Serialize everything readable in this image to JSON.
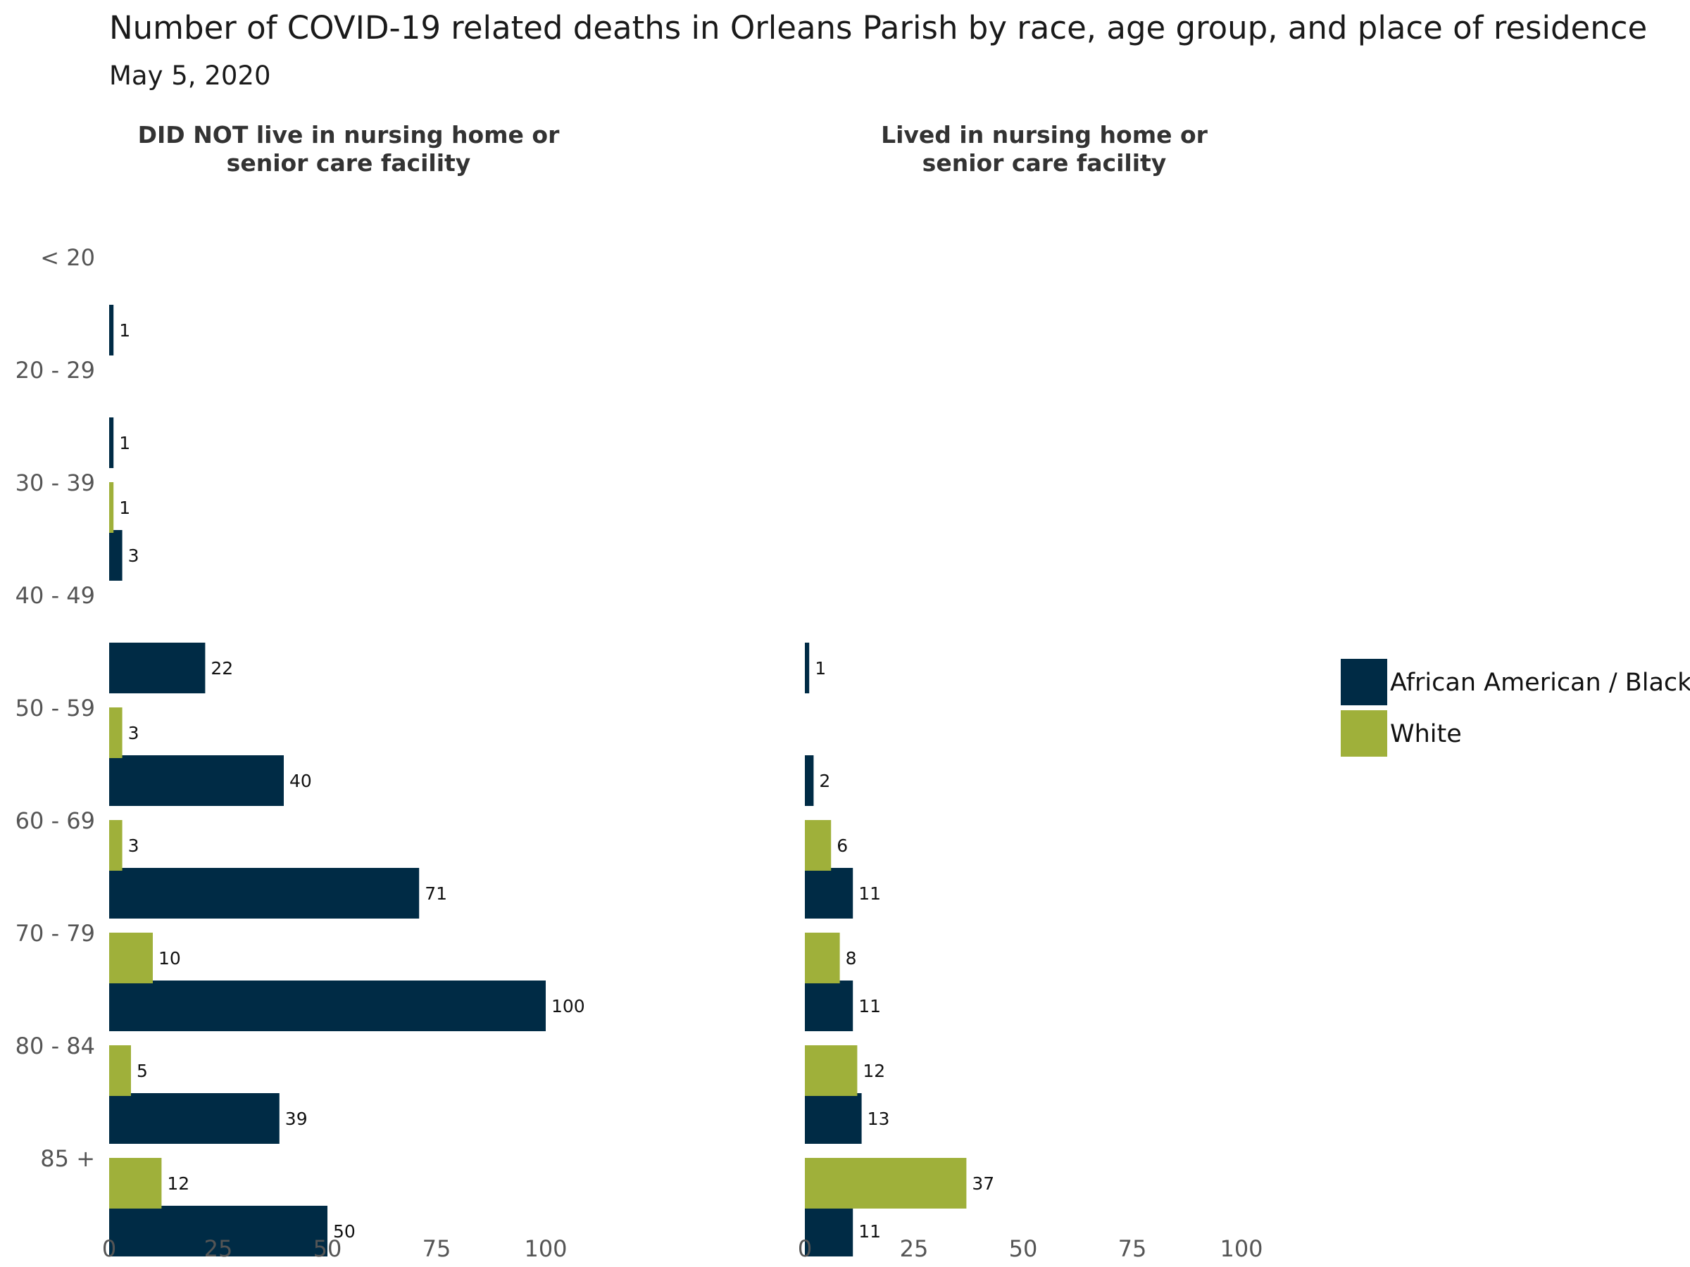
{
  "chart_data": {
    "type": "bar",
    "orientation": "horizontal",
    "title": "Number of COVID-19 related deaths in Orleans Parish by race, age group, and place of residence",
    "subtitle": "May 5, 2020",
    "categories": [
      "< 20",
      "20 - 29",
      "30 - 39",
      "40 - 49",
      "50 - 59",
      "60 - 69",
      "70 - 79",
      "80 - 84",
      "85 +"
    ],
    "xlim": [
      0,
      100
    ],
    "x_ticks": [
      "0",
      "25",
      "50",
      "75",
      "100"
    ],
    "grid": false,
    "legend_position": "right",
    "legend": [
      {
        "name": "African American / Black",
        "color": "#002b45"
      },
      {
        "name": "White",
        "color": "#9fb03a"
      }
    ],
    "panels": [
      {
        "title_lines": [
          "DID NOT live in nursing home or",
          "senior care facility"
        ],
        "series": [
          {
            "name": "African American / Black",
            "color": "#002b45",
            "values": [
              1,
              1,
              3,
              22,
              40,
              71,
              100,
              39,
              50
            ]
          },
          {
            "name": "White",
            "color": "#9fb03a",
            "values": [
              null,
              null,
              1,
              null,
              3,
              3,
              10,
              5,
              12
            ]
          }
        ]
      },
      {
        "title_lines": [
          "Lived in nursing home or",
          "senior care facility"
        ],
        "series": [
          {
            "name": "African American / Black",
            "color": "#002b45",
            "values": [
              null,
              null,
              null,
              1,
              2,
              11,
              11,
              13,
              11
            ]
          },
          {
            "name": "White",
            "color": "#9fb03a",
            "values": [
              null,
              null,
              null,
              null,
              null,
              6,
              8,
              12,
              37
            ]
          }
        ]
      }
    ]
  }
}
